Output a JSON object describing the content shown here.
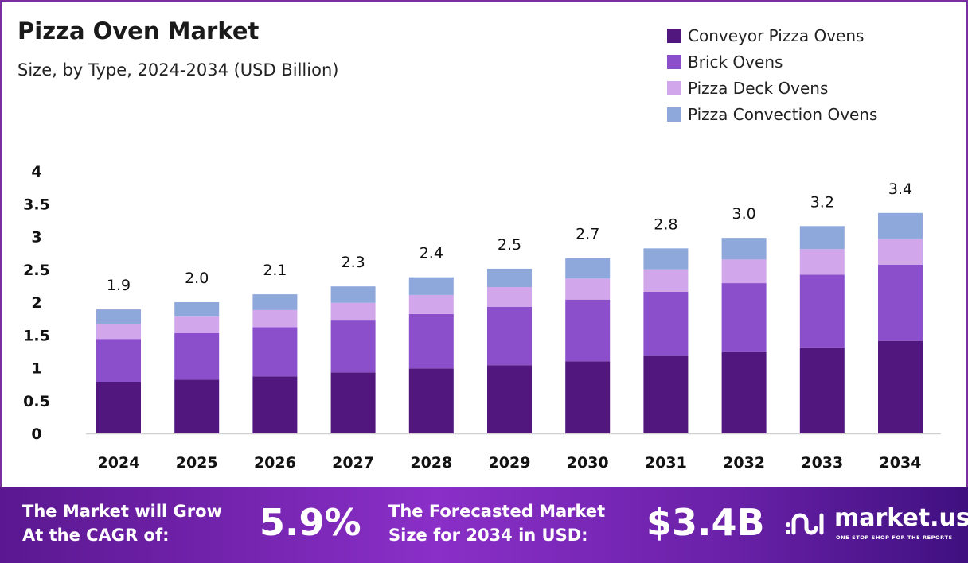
{
  "chart_data": {
    "type": "bar",
    "stacked": true,
    "title": "Pizza Oven Market",
    "subtitle": "Size, by Type, 2024-2034 (USD Billion)",
    "categories": [
      "2024",
      "2025",
      "2026",
      "2027",
      "2028",
      "2029",
      "2030",
      "2031",
      "2032",
      "2033",
      "2034"
    ],
    "series": [
      {
        "name": "Conveyor Pizza Ovens",
        "color": "#51177f",
        "values": [
          0.78,
          0.82,
          0.87,
          0.93,
          0.99,
          1.04,
          1.1,
          1.18,
          1.24,
          1.31,
          1.41
        ]
      },
      {
        "name": "Brick Ovens",
        "color": "#8b4fcc",
        "values": [
          0.66,
          0.71,
          0.75,
          0.79,
          0.83,
          0.89,
          0.94,
          0.98,
          1.05,
          1.11,
          1.16
        ]
      },
      {
        "name": "Pizza Deck Ovens",
        "color": "#d2a6ea",
        "values": [
          0.23,
          0.25,
          0.26,
          0.27,
          0.29,
          0.3,
          0.32,
          0.34,
          0.36,
          0.39,
          0.4
        ]
      },
      {
        "name": "Pizza Convection Ovens",
        "color": "#8fa8dc",
        "values": [
          0.22,
          0.22,
          0.24,
          0.25,
          0.27,
          0.28,
          0.31,
          0.32,
          0.33,
          0.35,
          0.39
        ]
      }
    ],
    "totals": [
      "1.9",
      "2.0",
      "2.1",
      "2.3",
      "2.4",
      "2.5",
      "2.7",
      "2.8",
      "3.0",
      "3.2",
      "3.4"
    ],
    "yticks": [
      "0",
      "0.5",
      "1",
      "1.5",
      "2",
      "2.5",
      "3",
      "3.5",
      "4"
    ],
    "ylim": [
      0,
      4
    ],
    "grid": false,
    "legend": "top-right"
  },
  "footer": {
    "cagr_label_1": "The Market will Grow",
    "cagr_label_2": "At the CAGR of:",
    "cagr_value": "5.9%",
    "size_label_1": "The Forecasted Market",
    "size_label_2": "Size for 2034 in USD:",
    "size_value": "$3.4B",
    "logo_name": "market.us",
    "logo_tagline": "ONE STOP SHOP FOR THE REPORTS"
  }
}
